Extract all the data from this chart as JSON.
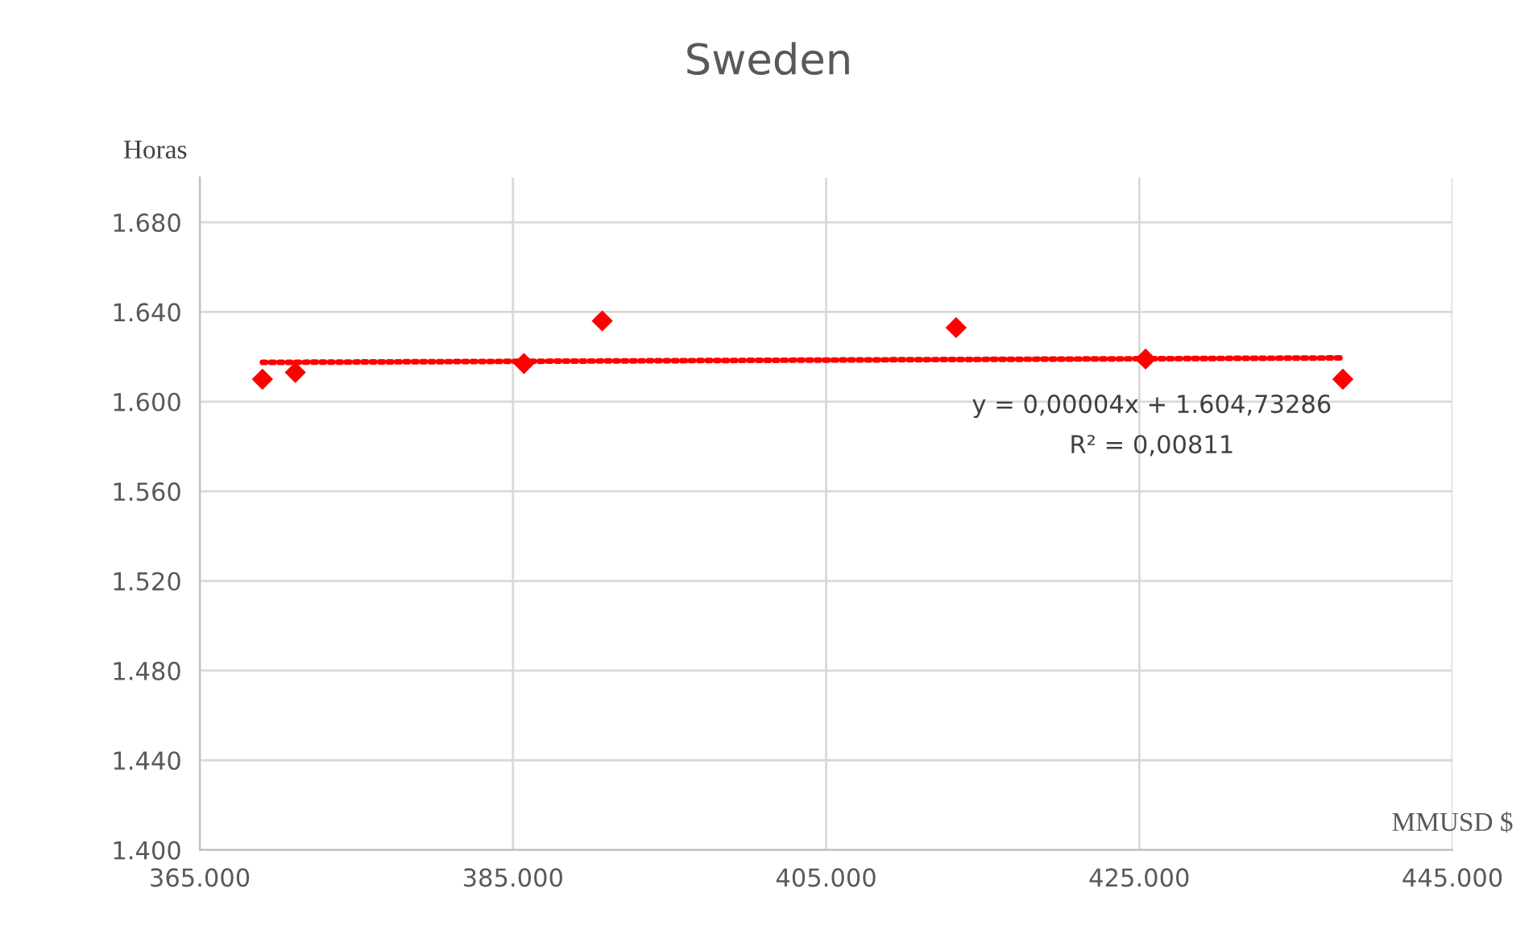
{
  "chart_data": {
    "type": "scatter",
    "title": "Sweden",
    "xlabel": "MMUSD $",
    "ylabel": "Horas",
    "series": [
      {
        "color": "#ff0000",
        "marker": "diamond",
        "x": [
          369000,
          371100,
          385700,
          390700,
          413300,
          425400,
          438000
        ],
        "values": [
          1610,
          1613,
          1617,
          1636,
          1633,
          1619,
          1610
        ]
      },
      {
        "type": "line",
        "color": "#ff0000",
        "line_style": "dotted",
        "marker": "none",
        "x": [
          369000,
          438000
        ],
        "values": [
          1617.5,
          1619.5
        ]
      }
    ],
    "xlim": [
      365000,
      445000
    ],
    "xticks": [
      {
        "value": 365000,
        "label": "365.000"
      },
      {
        "value": 385000,
        "label": "385.000"
      },
      {
        "value": 405000,
        "label": "405.000"
      },
      {
        "value": 425000,
        "label": "425.000"
      },
      {
        "value": 445000,
        "label": "445.000"
      }
    ],
    "ylim": [
      1400,
      1700
    ],
    "yticks": [
      {
        "value": 1400,
        "label": "1.400"
      },
      {
        "value": 1440,
        "label": "1.440"
      },
      {
        "value": 1480,
        "label": "1.480"
      },
      {
        "value": 1520,
        "label": "1.520"
      },
      {
        "value": 1560,
        "label": "1.560"
      },
      {
        "value": 1600,
        "label": "1.600"
      },
      {
        "value": 1640,
        "label": "1.640"
      },
      {
        "value": 1680,
        "label": "1.680"
      }
    ],
    "annotations": [
      "y = 0,00004x + 1.604,73286",
      "R² = 0,00811"
    ],
    "grid": true,
    "legend": false
  }
}
